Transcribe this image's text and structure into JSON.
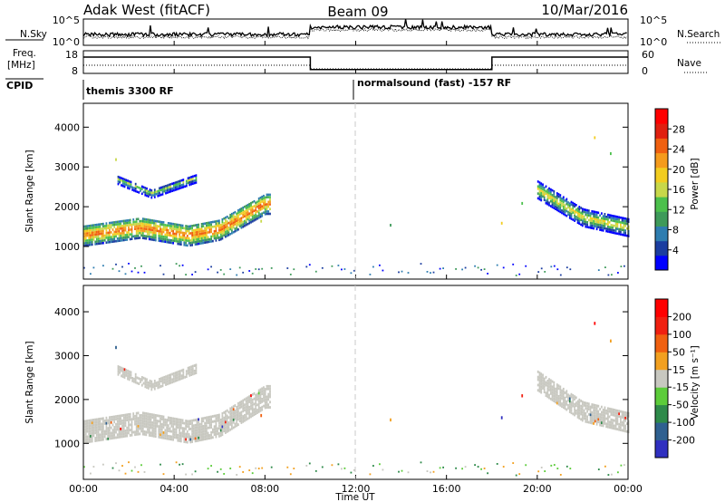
{
  "header": {
    "station": "Adak West (fitACF)",
    "beam": "Beam 09",
    "date": "10/Mar/2016"
  },
  "noise_panel": {
    "left_label": "N.Sky",
    "right_label": "N.Search",
    "left_ticks": [
      "10^5",
      "10^0"
    ],
    "right_ticks": [
      "10^5",
      "10^0"
    ]
  },
  "freq_panel": {
    "left_label_line1": "Freq.",
    "left_label_line2": "[MHz]",
    "right_label": "Nave",
    "left_ticks": [
      "18",
      "8"
    ],
    "right_ticks": [
      "60",
      "0"
    ],
    "freq_steps_hours": [
      [
        0,
        10.0,
        16
      ],
      [
        10.0,
        18.0,
        10.5
      ],
      [
        18.0,
        24,
        16
      ]
    ]
  },
  "cpid_panel": {
    "label": "CPID",
    "segments": [
      "themis 3300 RF",
      "normalsound (fast) -157 RF"
    ]
  },
  "chart_data": [
    {
      "type": "heatmap",
      "name": "power",
      "xlabel": "",
      "ylabel": "Slant Range [km]",
      "xlim_hours": [
        0,
        24
      ],
      "ylim_km": [
        180,
        4600
      ],
      "y_ticks": [
        "1000",
        "2000",
        "3000",
        "4000"
      ],
      "colorbar_label": "Power [dB]",
      "colorbar_ticks": [
        "4",
        "8",
        "12",
        "16",
        "20",
        "24",
        "28"
      ],
      "colorbar_range": [
        0,
        32
      ],
      "colors": [
        "#0000ff",
        "#1b3da0",
        "#2e7db0",
        "#3e9a5a",
        "#4cc04c",
        "#c8d84a",
        "#f2cd20",
        "#f59b1c",
        "#f06010",
        "#e02010",
        "#ff0000"
      ],
      "features": [
        {
          "desc": "main echo band",
          "t_start": 0.0,
          "t_end": 8.2,
          "range_center_km": [
            1250,
            1450,
            1250,
            1400,
            2050
          ],
          "range_center_hours": [
            0,
            2.5,
            4.6,
            6.0,
            8.0
          ],
          "power_db": 26
        },
        {
          "desc": "upper echo arc",
          "t_start": 1.5,
          "t_end": 5.0,
          "range_center_km": [
            2650,
            2300,
            2700
          ],
          "range_center_hours": [
            1.5,
            3.0,
            5.0
          ],
          "power_db": 16
        },
        {
          "desc": "late echo band",
          "t_start": 20.0,
          "t_end": 24.0,
          "range_center_km": [
            2400,
            1700,
            1450
          ],
          "range_center_hours": [
            20.0,
            22.0,
            24.0
          ],
          "power_db": 20
        }
      ]
    },
    {
      "type": "heatmap",
      "name": "velocity",
      "xlabel": "Time UT",
      "ylabel": "Slant Range [km]",
      "xlim_hours": [
        0,
        24
      ],
      "ylim_km": [
        180,
        4600
      ],
      "y_ticks": [
        "1000",
        "2000",
        "3000",
        "4000"
      ],
      "x_ticks": [
        "00:00",
        "04:00",
        "08:00",
        "12:00",
        "16:00",
        "20:00",
        "00:00"
      ],
      "colorbar_label": "Velocity [m s⁻¹]",
      "colorbar_ticks": [
        "200",
        "100",
        "50",
        "15",
        "-15",
        "-50",
        "-100",
        "-200"
      ],
      "colors": [
        "#3030c0",
        "#2f6090",
        "#2e8a4a",
        "#5ccc3a",
        "#c8c8c0",
        "#f2a020",
        "#f06010",
        "#f02010",
        "#ff0000"
      ],
      "features": [
        {
          "desc": "ground scatter (grey)",
          "velocity_ms": 0
        }
      ]
    }
  ],
  "time_marker_hours": 12
}
